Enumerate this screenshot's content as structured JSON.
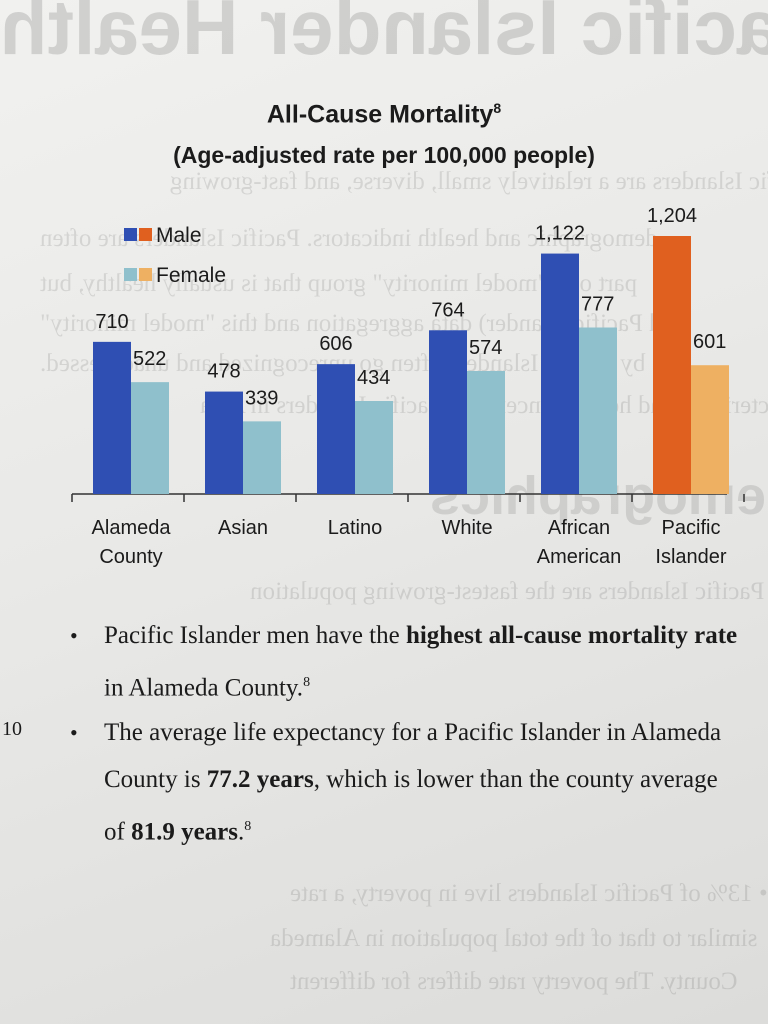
{
  "chart_data": {
    "type": "bar",
    "title": "All-Cause Mortality",
    "title_footnote": "8",
    "subtitle": "(Age-adjusted rate per 100,000 people)",
    "categories": [
      "Alameda County",
      "Asian",
      "Latino",
      "White",
      "African American",
      "Pacific Islander"
    ],
    "category_label_lines": [
      [
        "Alameda",
        "County"
      ],
      [
        "Asian"
      ],
      [
        "Latino"
      ],
      [
        "White"
      ],
      [
        "African",
        "American"
      ],
      [
        "Pacific",
        "Islander"
      ]
    ],
    "series": [
      {
        "name": "Male",
        "values": [
          710,
          478,
          606,
          764,
          1122,
          1204
        ],
        "labels": [
          "710",
          "478",
          "606",
          "764",
          "1,122",
          "1,204"
        ]
      },
      {
        "name": "Female",
        "values": [
          522,
          339,
          434,
          574,
          777,
          601
        ],
        "labels": [
          "522",
          "339",
          "434",
          "574",
          "777",
          "601"
        ]
      }
    ],
    "ylim": [
      0,
      1300
    ],
    "grid": false,
    "legend_position": "top-left",
    "colors": {
      "male": "#2f4fb3",
      "female": "#8fc0cc",
      "male_highlight": "#e0601f",
      "female_highlight": "#eeb062"
    },
    "highlight_category_index": 5
  },
  "bullets": [
    {
      "pre": "Pacific Islander men have the ",
      "bold": "highest all-cause mortality rate",
      "post": " in Alameda County.",
      "sup": "8"
    },
    {
      "pre": "The average life expectancy for a Pacific Islander in Alameda County is ",
      "bold": "77.2 years",
      "mid": ", which is lower than the county average of ",
      "bold2": "81.9 years",
      "post": ".",
      "sup": "8"
    }
  ],
  "page_number": "10",
  "bullet_symbol": "•"
}
